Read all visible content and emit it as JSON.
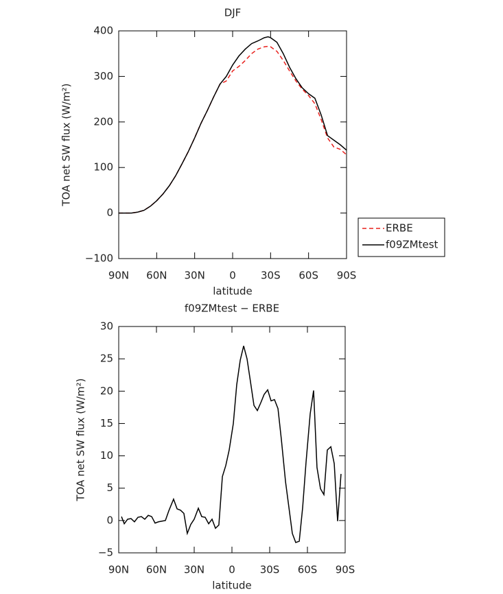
{
  "chart_data": [
    {
      "type": "line",
      "title": "DJF",
      "xlabel": "latitude",
      "ylabel": "TOA net SW flux (W/m²)",
      "x": [
        90,
        85,
        80,
        75,
        70,
        65,
        60,
        55,
        50,
        45,
        40,
        35,
        30,
        25,
        20,
        15,
        10,
        5,
        0,
        -5,
        -10,
        -15,
        -20,
        -25,
        -28,
        -30,
        -35,
        -40,
        -45,
        -50,
        -55,
        -60,
        -65,
        -70,
        -75,
        -80,
        -85,
        -90
      ],
      "series": [
        {
          "name": "ERBE",
          "color": "#e8201c",
          "dash": "dashed",
          "values": [
            0,
            0,
            0,
            2,
            6,
            15,
            27,
            42,
            60,
            82,
            108,
            135,
            165,
            197,
            225,
            255,
            283,
            290,
            312,
            322,
            335,
            350,
            360,
            365,
            366,
            365,
            355,
            335,
            312,
            290,
            272,
            258,
            240,
            205,
            165,
            145,
            140,
            128
          ]
        },
        {
          "name": "f09ZMtest",
          "color": "#000000",
          "dash": "solid",
          "values": [
            0,
            0,
            0,
            2,
            6,
            15,
            27,
            42,
            60,
            82,
            108,
            135,
            165,
            197,
            225,
            255,
            283,
            300,
            325,
            345,
            360,
            372,
            378,
            385,
            387,
            385,
            375,
            350,
            320,
            295,
            275,
            262,
            252,
            215,
            170,
            160,
            150,
            138
          ]
        }
      ],
      "xlim": [
        90,
        -90
      ],
      "xticks": [
        {
          "value": 90,
          "label": "90N"
        },
        {
          "value": 60,
          "label": "60N"
        },
        {
          "value": 30,
          "label": "30N"
        },
        0,
        {
          "value": -30,
          "label": "30S"
        },
        {
          "value": -60,
          "label": "60S"
        },
        {
          "value": -90,
          "label": "90S"
        }
      ],
      "ylim": [
        -100,
        400
      ],
      "yticks": [
        {
          "value": -100,
          "label": "−100"
        },
        0,
        100,
        200,
        300,
        400
      ],
      "legend": "right"
    },
    {
      "type": "line",
      "title": "f09ZMtest − ERBE",
      "xlabel": "latitude",
      "ylabel": "TOA net SW flux (W/m²)",
      "x": [
        87.8,
        85.6,
        82.9,
        80.2,
        77.5,
        74.7,
        72.0,
        69.3,
        66.5,
        63.8,
        61.1,
        58.4,
        55.6,
        52.9,
        50.2,
        46.4,
        43.6,
        40.9,
        38.2,
        35.5,
        32.7,
        30.0,
        26.7,
        24.0,
        21.3,
        18.5,
        15.8,
        13.1,
        10.4,
        7.6,
        4.9,
        2.2,
        -1.1,
        -3.8,
        -6.6,
        -9.3,
        -12.0,
        -14.7,
        -17.5,
        -20.2,
        -22.9,
        -25.6,
        -28.4,
        -31.1,
        -33.8,
        -36.6,
        -39.3,
        -42.6,
        -45.3,
        -48.0,
        -50.7,
        -53.5,
        -56.2,
        -58.9,
        -62.2,
        -64.9,
        -67.6,
        -70.4,
        -73.1,
        -75.8,
        -78.6,
        -81.3,
        -84.0,
        -86.7
      ],
      "series": [
        {
          "color": "#000000",
          "dash": "solid",
          "values": [
            0.6,
            -0.5,
            0.2,
            0.3,
            -0.2,
            0.5,
            0.6,
            0.2,
            0.8,
            0.6,
            -0.4,
            -0.2,
            -0.1,
            0,
            1.5,
            3.3,
            1.8,
            1.6,
            1.1,
            -2.0,
            -0.6,
            0.2,
            1.9,
            0.6,
            0.5,
            -0.5,
            0.2,
            -1.2,
            -0.7,
            6.8,
            8.5,
            10.9,
            15.0,
            21.0,
            24.8,
            27.0,
            25.0,
            21.5,
            17.8,
            17.0,
            18.2,
            19.5,
            20.2,
            18.5,
            18.7,
            17.3,
            12.5,
            6.0,
            2.0,
            -2.0,
            -3.4,
            -3.2,
            2.0,
            9.0,
            16.5,
            20.1,
            8.2,
            4.9,
            4.0,
            10.9,
            11.4,
            8.8,
            -0.1,
            7.2
          ]
        }
      ],
      "xlim": [
        90,
        -90
      ],
      "xticks": [
        {
          "value": 90,
          "label": "90N"
        },
        {
          "value": 60,
          "label": "60N"
        },
        {
          "value": 30,
          "label": "30N"
        },
        0,
        {
          "value": -30,
          "label": "30S"
        },
        {
          "value": -60,
          "label": "60S"
        },
        {
          "value": -90,
          "label": "90S"
        }
      ],
      "ylim": [
        -5,
        30
      ],
      "yticks": [
        {
          "value": -5,
          "label": "−5"
        },
        0,
        5,
        10,
        15,
        20,
        25,
        30
      ]
    }
  ]
}
